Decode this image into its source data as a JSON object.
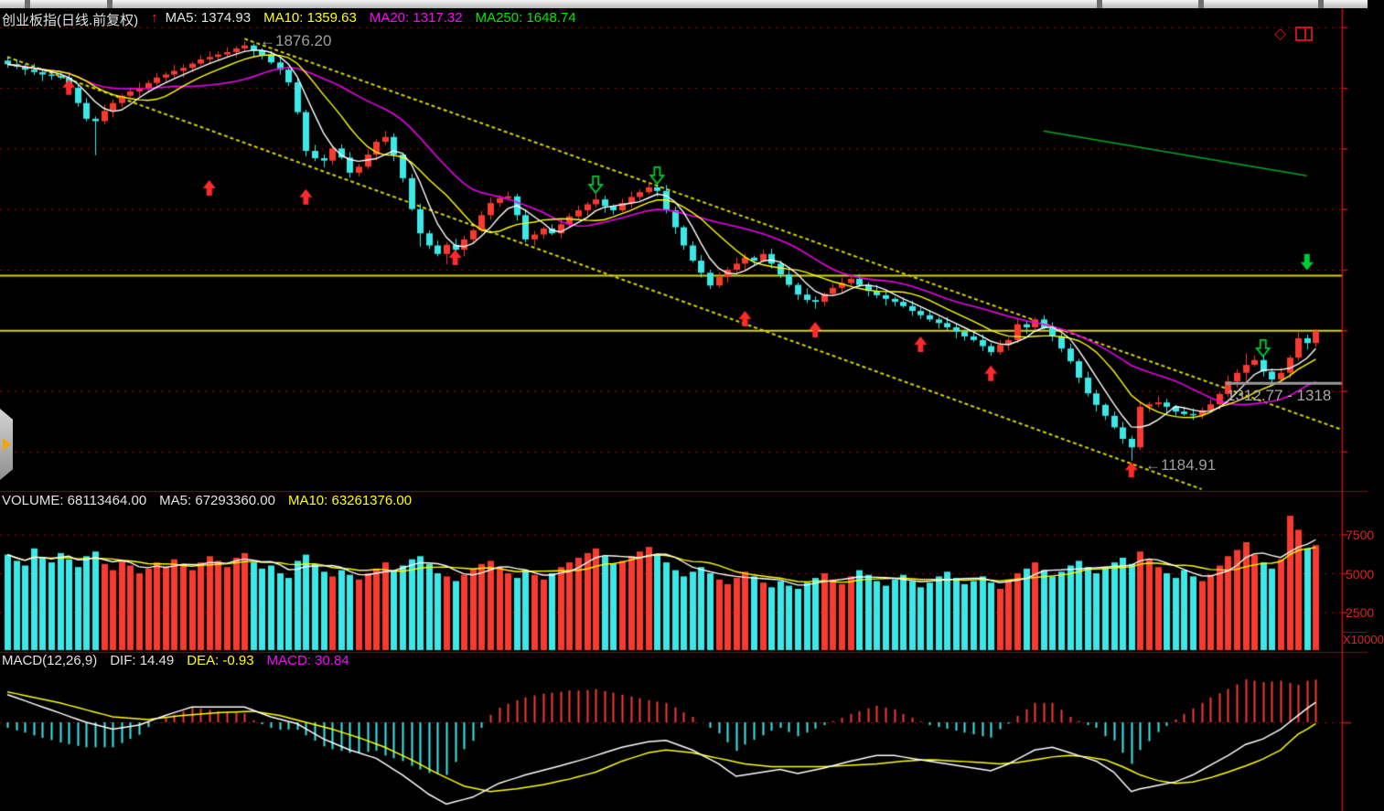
{
  "window": {
    "icons": {
      "diamond": "◇"
    }
  },
  "main_chart": {
    "header": {
      "symbol": "创业板指(日线.前复权)",
      "trend_arrow": "↑",
      "ma5": "MA5: 1374.93",
      "ma10": "MA10: 1359.63",
      "ma20": "MA20: 1317.32",
      "ma250": "MA250: 1648.74"
    },
    "annotations": {
      "high": "←1876.20",
      "low": "←1184.91",
      "price_tag": "1312.77 - 1318"
    }
  },
  "volume_panel": {
    "header": {
      "volume": "VOLUME: 68113464.00",
      "ma5": "MA5: 67293360.00",
      "ma10": "MA10: 63261376.00"
    }
  },
  "macd_panel": {
    "header": {
      "name": "MACD(12,26,9)",
      "dif": "DIF: 14.49",
      "dea": "DEA: -0.93",
      "macd": "MACD: 30.84"
    }
  },
  "colors": {
    "up": "#f93a2e",
    "down": "#3ae8e8",
    "ma5": "#ffffff",
    "ma10": "#ffff00",
    "ma20": "#ee00ee",
    "ma250": "#00aa22",
    "grid": "#b00000",
    "axis": "#cc1111",
    "trendline": "#d6d600",
    "price_line": "#9a9a9a",
    "buy_arrow": "#ff2a2a",
    "sell_arrow": "#00cc33"
  },
  "chart_data": [
    {
      "type": "candlestick",
      "title": "创业板指 daily candles (front-adjusted)",
      "ylim": [
        1130,
        1910
      ],
      "gridline_prices": [
        1900,
        1800,
        1700,
        1600,
        1500,
        1400,
        1300,
        1200
      ],
      "high_label": 1876.2,
      "low_label": 1184.91,
      "opens": [
        1845,
        1839,
        1835,
        1830,
        1826,
        1822,
        1820,
        1817,
        1800,
        1775,
        1749,
        1745,
        1762,
        1775,
        1787,
        1794,
        1800,
        1808,
        1817,
        1822,
        1828,
        1833,
        1840,
        1847,
        1851,
        1855,
        1859,
        1865,
        1870,
        1862,
        1854,
        1842,
        1830,
        1809,
        1760,
        1696,
        1684,
        1680,
        1700,
        1685,
        1660,
        1670,
        1690,
        1711,
        1719,
        1690,
        1651,
        1600,
        1560,
        1540,
        1526,
        1541,
        1533,
        1550,
        1565,
        1590,
        1610,
        1618,
        1621,
        1590,
        1550,
        1558,
        1568,
        1560,
        1575,
        1588,
        1598,
        1608,
        1616,
        1605,
        1598,
        1610,
        1620,
        1628,
        1636,
        1630,
        1598,
        1570,
        1540,
        1515,
        1495,
        1474,
        1488,
        1500,
        1510,
        1520,
        1515,
        1526,
        1510,
        1492,
        1475,
        1459,
        1450,
        1447,
        1460,
        1470,
        1478,
        1485,
        1475,
        1465,
        1458,
        1452,
        1447,
        1440,
        1432,
        1425,
        1418,
        1412,
        1405,
        1398,
        1390,
        1384,
        1374,
        1364,
        1376,
        1384,
        1410,
        1405,
        1418,
        1404,
        1390,
        1370,
        1349,
        1322,
        1296,
        1277,
        1259,
        1240,
        1221,
        1207,
        1274,
        1278,
        1281,
        1274,
        1266,
        1262,
        1260,
        1268,
        1278,
        1295,
        1316,
        1330,
        1343,
        1351,
        1332,
        1319,
        1330,
        1355,
        1387,
        1379
      ],
      "closes": [
        1839,
        1835,
        1830,
        1826,
        1822,
        1820,
        1817,
        1800,
        1775,
        1749,
        1745,
        1762,
        1775,
        1787,
        1794,
        1800,
        1808,
        1817,
        1822,
        1828,
        1833,
        1840,
        1847,
        1851,
        1855,
        1859,
        1865,
        1870,
        1862,
        1854,
        1842,
        1830,
        1809,
        1760,
        1696,
        1684,
        1680,
        1700,
        1685,
        1660,
        1670,
        1690,
        1711,
        1719,
        1690,
        1651,
        1600,
        1560,
        1540,
        1526,
        1541,
        1533,
        1550,
        1565,
        1590,
        1610,
        1618,
        1621,
        1590,
        1550,
        1558,
        1568,
        1560,
        1575,
        1588,
        1598,
        1608,
        1616,
        1605,
        1598,
        1610,
        1620,
        1628,
        1636,
        1630,
        1598,
        1570,
        1540,
        1515,
        1495,
        1474,
        1488,
        1500,
        1510,
        1520,
        1515,
        1526,
        1510,
        1492,
        1475,
        1459,
        1450,
        1447,
        1460,
        1470,
        1478,
        1485,
        1475,
        1465,
        1458,
        1452,
        1447,
        1440,
        1432,
        1425,
        1418,
        1412,
        1405,
        1398,
        1390,
        1384,
        1374,
        1364,
        1376,
        1384,
        1410,
        1405,
        1418,
        1404,
        1390,
        1370,
        1349,
        1322,
        1296,
        1277,
        1259,
        1240,
        1221,
        1207,
        1274,
        1278,
        1281,
        1274,
        1266,
        1262,
        1260,
        1268,
        1278,
        1295,
        1316,
        1330,
        1343,
        1351,
        1332,
        1319,
        1330,
        1355,
        1387,
        1379,
        1399
      ],
      "highs": [
        1850,
        1847,
        1839,
        1840,
        1832,
        1825,
        1827,
        1826,
        1805,
        1783,
        1753,
        1772,
        1781,
        1790,
        1801,
        1809,
        1813,
        1825,
        1826,
        1838,
        1839,
        1843,
        1854,
        1860,
        1860,
        1867,
        1869,
        1876,
        1873,
        1865,
        1861,
        1851,
        1835,
        1817,
        1764,
        1706,
        1690,
        1703,
        1707,
        1694,
        1675,
        1698,
        1715,
        1729,
        1725,
        1693,
        1658,
        1609,
        1565,
        1548,
        1545,
        1551,
        1556,
        1568,
        1597,
        1619,
        1623,
        1629,
        1625,
        1600,
        1564,
        1571,
        1575,
        1584,
        1593,
        1606,
        1612,
        1626,
        1622,
        1608,
        1617,
        1629,
        1633,
        1644,
        1640,
        1640,
        1604,
        1573,
        1547,
        1524,
        1500,
        1496,
        1504,
        1520,
        1526,
        1523,
        1533,
        1535,
        1515,
        1500,
        1479,
        1469,
        1456,
        1463,
        1477,
        1487,
        1490,
        1493,
        1479,
        1475,
        1464,
        1455,
        1454,
        1449,
        1437,
        1433,
        1422,
        1422,
        1411,
        1401,
        1397,
        1393,
        1379,
        1384,
        1388,
        1420,
        1416,
        1421,
        1425,
        1413,
        1395,
        1378,
        1353,
        1332,
        1302,
        1280,
        1266,
        1249,
        1226,
        1282,
        1282,
        1291,
        1287,
        1277,
        1273,
        1271,
        1273,
        1286,
        1299,
        1326,
        1336,
        1362,
        1358,
        1360,
        1337,
        1338,
        1359,
        1397,
        1393,
        1402
      ],
      "lows": [
        1833,
        1831,
        1821,
        1821,
        1811,
        1813,
        1814,
        1792,
        1769,
        1745,
        1689,
        1740,
        1751,
        1768,
        1784,
        1786,
        1794,
        1804,
        1808,
        1817,
        1817,
        1826,
        1837,
        1839,
        1845,
        1851,
        1850,
        1860,
        1851,
        1847,
        1839,
        1822,
        1803,
        1756,
        1687,
        1679,
        1669,
        1673,
        1682,
        1652,
        1654,
        1666,
        1681,
        1706,
        1679,
        1644,
        1597,
        1538,
        1534,
        1522,
        1509,
        1528,
        1522,
        1543,
        1562,
        1582,
        1604,
        1614,
        1581,
        1545,
        1539,
        1551,
        1557,
        1552,
        1569,
        1584,
        1589,
        1603,
        1594,
        1591,
        1595,
        1602,
        1614,
        1624,
        1621,
        1593,
        1559,
        1533,
        1512,
        1487,
        1468,
        1470,
        1479,
        1495,
        1499,
        1508,
        1512,
        1502,
        1486,
        1471,
        1450,
        1445,
        1436,
        1440,
        1457,
        1462,
        1472,
        1471,
        1456,
        1453,
        1441,
        1440,
        1437,
        1424,
        1419,
        1414,
        1403,
        1400,
        1387,
        1383,
        1381,
        1366,
        1358,
        1360,
        1367,
        1379,
        1394,
        1398,
        1401,
        1382,
        1364,
        1345,
        1313,
        1291,
        1266,
        1252,
        1237,
        1213,
        1185,
        1203,
        1265,
        1273,
        1263,
        1259,
        1259,
        1252,
        1254,
        1264,
        1269,
        1290,
        1305,
        1310,
        1340,
        1324,
        1313,
        1315,
        1321,
        1350,
        1368,
        1372
      ],
      "ma250_segment": {
        "from": [
          118,
          1729
        ],
        "to": [
          148,
          1655
        ]
      },
      "markers": [
        {
          "index": 7,
          "price": 1814,
          "type": "buy-up-arrow"
        },
        {
          "index": 23,
          "price": 1648,
          "type": "buy-up-arrow"
        },
        {
          "index": 34,
          "price": 1633,
          "type": "buy-up-arrow"
        },
        {
          "index": 51,
          "price": 1533,
          "type": "buy-up-arrow"
        },
        {
          "index": 84,
          "price": 1432,
          "type": "buy-up-arrow"
        },
        {
          "index": 92,
          "price": 1414,
          "type": "buy-up-arrow"
        },
        {
          "index": 104,
          "price": 1390,
          "type": "buy-up-arrow"
        },
        {
          "index": 112,
          "price": 1342,
          "type": "buy-up-arrow"
        },
        {
          "index": 128,
          "price": 1183,
          "type": "buy-up-arrow"
        },
        {
          "index": 67,
          "price": 1654,
          "type": "sell-down-arrow-hollow"
        },
        {
          "index": 74,
          "price": 1669,
          "type": "sell-down-arrow-hollow"
        },
        {
          "index": 143,
          "price": 1384,
          "type": "sell-down-arrow-hollow"
        },
        {
          "index": 148,
          "price": 1526,
          "type": "sell-down-arrow-solid"
        }
      ],
      "drawings": {
        "trendlines": [
          {
            "from": [
              27,
              1881
            ],
            "to": [
              152,
              1236
            ]
          },
          {
            "from": [
              0,
              1851
            ],
            "to": [
              136,
              1138
            ]
          }
        ],
        "hlines": [
          1491,
          1400
        ],
        "price_line": {
          "price": 1312.77,
          "x_from": 1340
        }
      }
    },
    {
      "type": "bar",
      "title": "VOLUME",
      "gridlines": [
        25,
        50,
        75
      ],
      "axis": {
        "labels": [
          "7500",
          "5000",
          "2500"
        ],
        "unit": "X10000"
      },
      "values": [
        62,
        58,
        55,
        66,
        60,
        57,
        63,
        59,
        54,
        61,
        64,
        56,
        52,
        58,
        55,
        50,
        53,
        57,
        54,
        59,
        56,
        52,
        57,
        61,
        58,
        54,
        60,
        63,
        57,
        53,
        55,
        50,
        47,
        58,
        62,
        56,
        51,
        48,
        52,
        49,
        46,
        50,
        53,
        57,
        52,
        55,
        59,
        61,
        56,
        50,
        48,
        45,
        49,
        53,
        56,
        58,
        54,
        50,
        47,
        52,
        49,
        46,
        50,
        54,
        57,
        60,
        63,
        66,
        61,
        56,
        58,
        61,
        64,
        67,
        62,
        57,
        52,
        48,
        51,
        54,
        50,
        46,
        43,
        47,
        51,
        48,
        44,
        41,
        45,
        42,
        40,
        44,
        47,
        50,
        46,
        43,
        48,
        52,
        49,
        45,
        42,
        46,
        49,
        45,
        41,
        44,
        48,
        51,
        47,
        43,
        45,
        48,
        44,
        40,
        46,
        50,
        53,
        57,
        52,
        48,
        51,
        55,
        58,
        54,
        50,
        53,
        57,
        60,
        56,
        64,
        59,
        54,
        50,
        47,
        52,
        48,
        45,
        49,
        55,
        61,
        65,
        70,
        62,
        57,
        53,
        59,
        87,
        78,
        66,
        68.1
      ]
    },
    {
      "type": "macd",
      "title": "MACD(12,26,9)",
      "dif": [
        20.0,
        17.8,
        15.6,
        13.3,
        11.1,
        8.9,
        6.7,
        4.4,
        2.2,
        0.0,
        -1.7,
        -3.3,
        -5.0,
        -4.0,
        -3.0,
        -2.0,
        0.3,
        2.7,
        5.0,
        7.0,
        9.0,
        11.0,
        11.0,
        11.0,
        11.0,
        11.0,
        11.0,
        11.0,
        8.7,
        6.3,
        4.0,
        2.3,
        0.7,
        -1.0,
        -4.7,
        -8.3,
        -12.0,
        -14.7,
        -17.3,
        -20.0,
        -22.0,
        -24.0,
        -26.0,
        -30.0,
        -34.0,
        -38.0,
        -42.7,
        -47.3,
        -52.0,
        -55.5,
        -59.0,
        -57.3,
        -55.7,
        -54.0,
        -50.7,
        -47.3,
        -44.0,
        -42.0,
        -40.0,
        -38.0,
        -36.3,
        -34.7,
        -33.0,
        -31.3,
        -29.5,
        -27.8,
        -26.0,
        -24.0,
        -22.0,
        -20.0,
        -18.0,
        -16.7,
        -15.3,
        -14.0,
        -13.5,
        -13.0,
        -15.3,
        -17.7,
        -20.0,
        -23.3,
        -26.7,
        -30.0,
        -34.5,
        -39.0,
        -38.0,
        -37.0,
        -36.0,
        -35.0,
        -34.0,
        -35.5,
        -37.0,
        -35.7,
        -34.3,
        -33.0,
        -31.3,
        -29.7,
        -28.0,
        -26.7,
        -25.3,
        -24.0,
        -24.0,
        -24.0,
        -25.0,
        -26.0,
        -27.0,
        -28.0,
        -29.0,
        -30.0,
        -31.0,
        -32.0,
        -33.0,
        -34.0,
        -35.0,
        -32.5,
        -30.0,
        -26.7,
        -23.3,
        -20.0,
        -19.0,
        -18.0,
        -20.0,
        -22.0,
        -24.0,
        -26.0,
        -28.0,
        -32.0,
        -36.0,
        -43.0,
        -50.0,
        -48.0,
        -46.8,
        -45.5,
        -44.3,
        -43.0,
        -40.5,
        -38.0,
        -34.5,
        -31.0,
        -27.5,
        -24.0,
        -20.0,
        -16.0,
        -14.0,
        -12.0,
        -8.5,
        -5.0,
        0.0,
        5.0,
        10.0,
        14.49
      ],
      "dea": [
        22.0,
        20.7,
        19.3,
        18.0,
        16.7,
        15.3,
        14.0,
        12.3,
        10.7,
        9.0,
        7.3,
        5.7,
        4.0,
        3.5,
        3.0,
        2.5,
        2.0,
        2.8,
        3.5,
        4.3,
        5.0,
        5.5,
        6.0,
        6.5,
        7.0,
        7.3,
        7.5,
        7.8,
        8.0,
        7.0,
        6.0,
        5.0,
        3.3,
        1.7,
        0.0,
        -1.7,
        -3.3,
        -5.0,
        -7.0,
        -9.0,
        -11.0,
        -13.3,
        -15.7,
        -18.0,
        -21.0,
        -24.0,
        -27.0,
        -30.3,
        -33.7,
        -37.0,
        -40.0,
        -43.0,
        -46.0,
        -47.3,
        -48.7,
        -50.0,
        -49.3,
        -48.7,
        -48.0,
        -47.0,
        -46.0,
        -45.0,
        -43.7,
        -42.3,
        -41.0,
        -39.3,
        -37.7,
        -36.0,
        -33.3,
        -30.7,
        -28.0,
        -26.0,
        -24.0,
        -22.0,
        -21.0,
        -20.0,
        -20.7,
        -21.3,
        -22.0,
        -23.3,
        -24.7,
        -26.0,
        -27.3,
        -28.7,
        -30.0,
        -30.7,
        -31.3,
        -32.0,
        -32.0,
        -32.0,
        -32.0,
        -32.0,
        -32.0,
        -32.0,
        -31.7,
        -31.3,
        -31.0,
        -30.7,
        -30.3,
        -30.0,
        -29.3,
        -28.7,
        -28.0,
        -27.7,
        -27.3,
        -27.0,
        -27.3,
        -27.7,
        -28.0,
        -28.3,
        -28.7,
        -29.0,
        -29.5,
        -30.0,
        -29.5,
        -29.0,
        -28.0,
        -27.0,
        -26.0,
        -25.0,
        -24.5,
        -24.0,
        -24.5,
        -25.0,
        -26.0,
        -27.0,
        -29.5,
        -32.0,
        -35.0,
        -38.0,
        -40.0,
        -42.0,
        -43.0,
        -44.0,
        -43.5,
        -43.0,
        -41.5,
        -40.0,
        -38.0,
        -36.0,
        -33.7,
        -31.5,
        -29.0,
        -26.5,
        -23.2,
        -20.0,
        -14.2,
        -8.5,
        -5.0,
        -0.93
      ],
      "hist_formula": "2*(dif-dea)",
      "last_values": {
        "dif": 14.49,
        "dea": -0.93,
        "macd": 30.84
      }
    }
  ]
}
